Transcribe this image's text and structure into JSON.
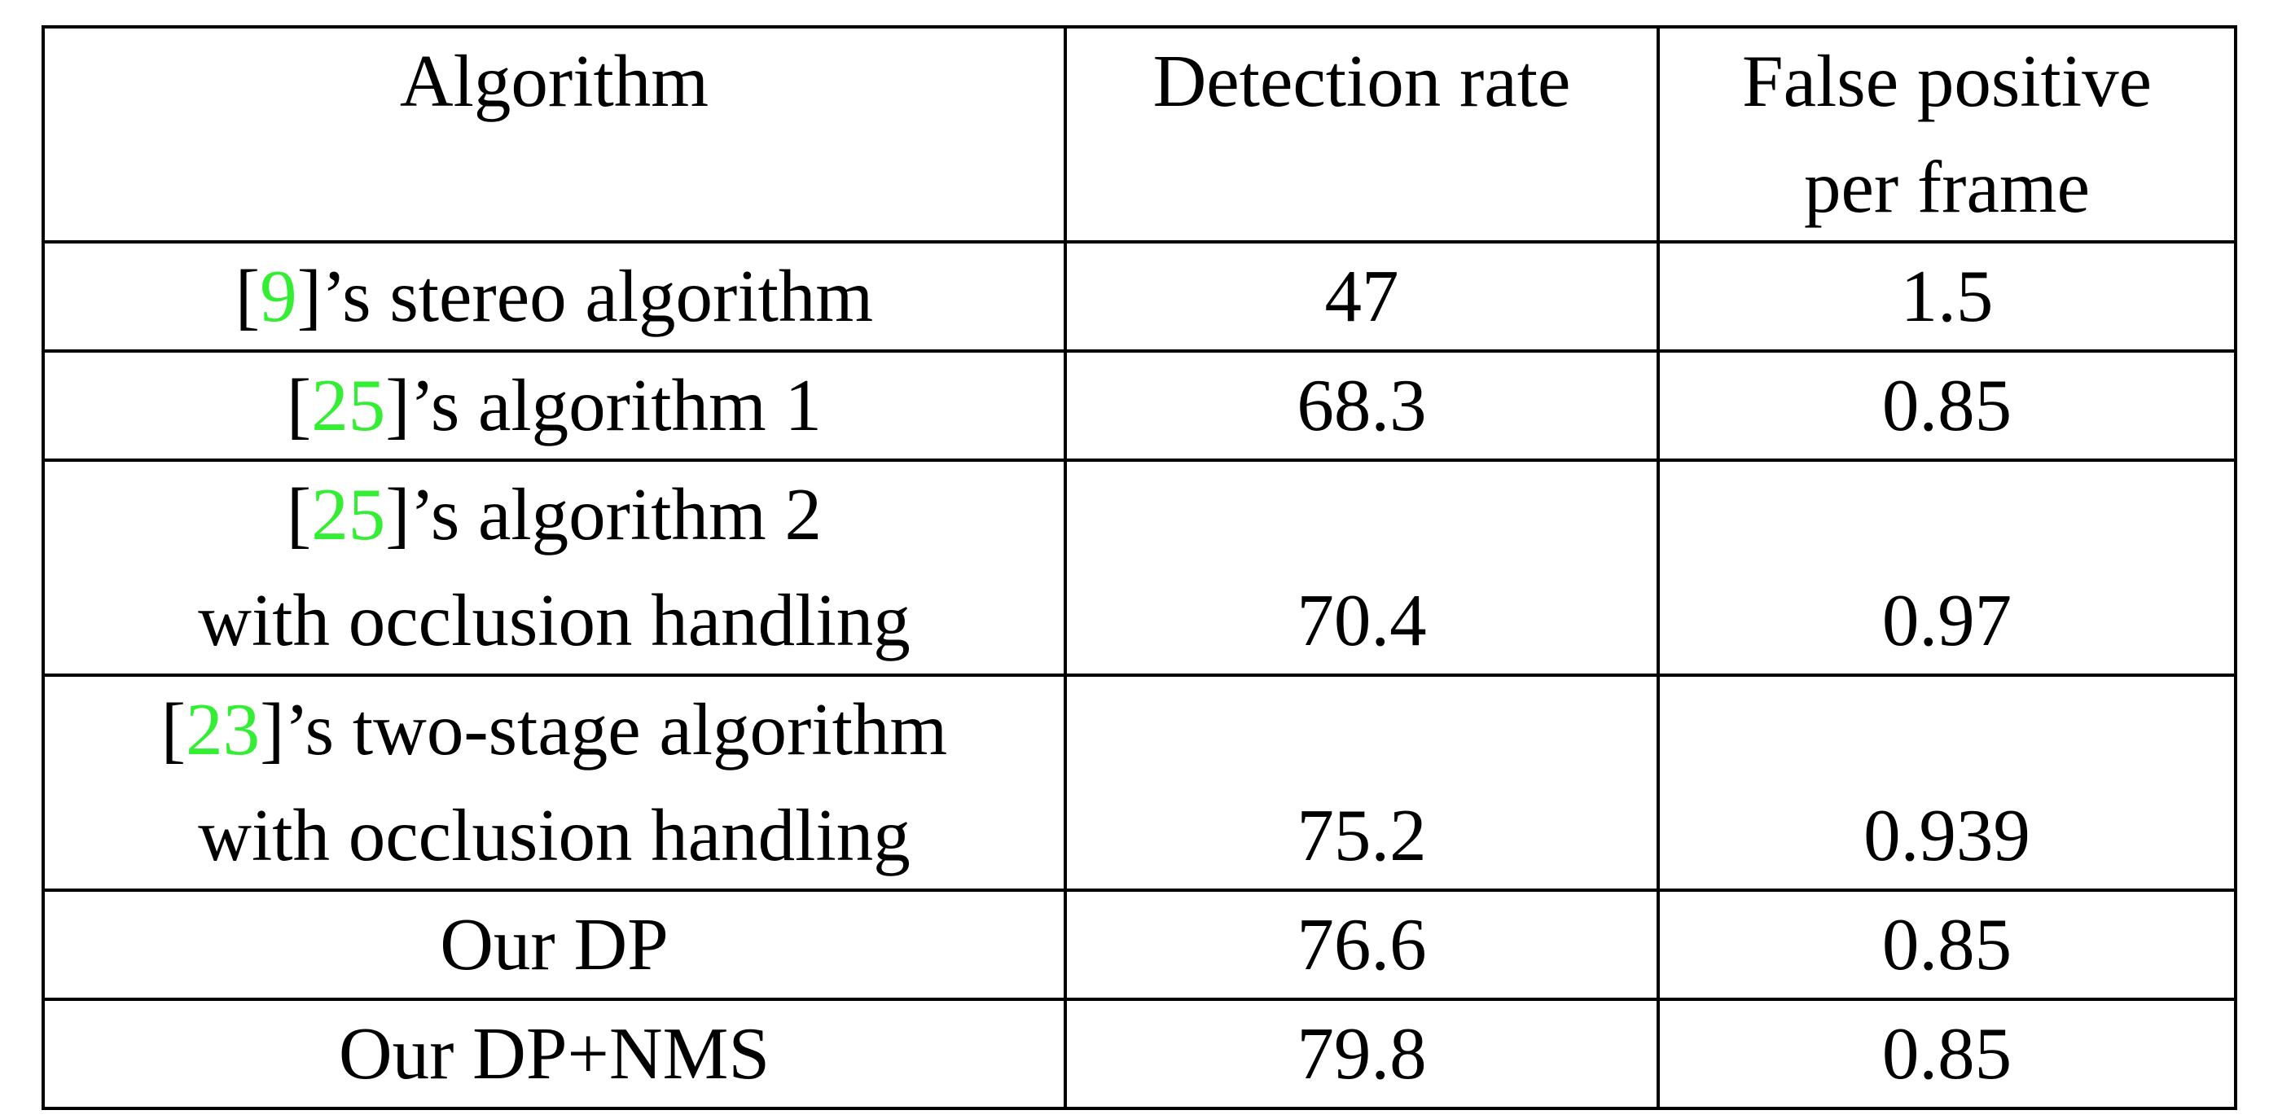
{
  "table": {
    "headers": [
      [
        "Algorithm"
      ],
      [
        "Detection rate"
      ],
      [
        "False positive",
        "per frame"
      ]
    ],
    "rows": [
      {
        "algorithm_lines": [
          {
            "pre": "[",
            "ref": "9",
            "post": "]’s stereo algorithm"
          }
        ],
        "detection_rate": "47",
        "false_positive": "1.5"
      },
      {
        "algorithm_lines": [
          {
            "pre": "[",
            "ref": "25",
            "post": "]’s algorithm 1"
          }
        ],
        "detection_rate": "68.3",
        "false_positive": "0.85"
      },
      {
        "algorithm_lines": [
          {
            "pre": "[",
            "ref": "25",
            "post": "]’s algorithm 2"
          },
          {
            "text": "with occlusion handling"
          }
        ],
        "detection_rate": "70.4",
        "false_positive": "0.97"
      },
      {
        "algorithm_lines": [
          {
            "pre": "[",
            "ref": "23",
            "post": "]’s two-stage algorithm"
          },
          {
            "text": "with occlusion handling"
          }
        ],
        "detection_rate": "75.2",
        "false_positive": "0.939"
      },
      {
        "algorithm_lines": [
          {
            "text": "Our DP"
          }
        ],
        "detection_rate": "76.6",
        "false_positive": "0.85"
      },
      {
        "algorithm_lines": [
          {
            "text": "Our DP+NMS"
          }
        ],
        "detection_rate": "79.8",
        "false_positive": "0.85"
      }
    ],
    "citation_color": "#33ee33",
    "border_color": "#000000",
    "text_color": "#000000"
  }
}
